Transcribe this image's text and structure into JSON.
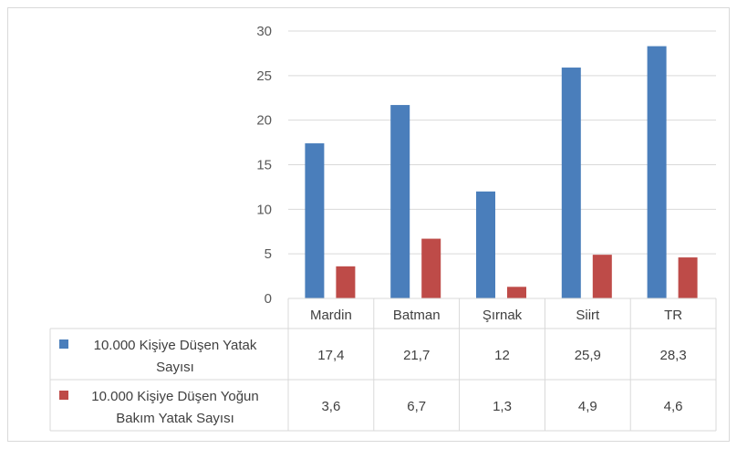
{
  "chart_data": {
    "type": "bar",
    "title": "",
    "xlabel": "",
    "ylabel": "",
    "ylim": [
      0,
      30
    ],
    "yticks": [
      0,
      5,
      10,
      15,
      20,
      25,
      30
    ],
    "grid": true,
    "legend": "data-table",
    "categories": [
      "Mardin",
      "Batman",
      "Şırnak",
      "Siirt",
      "TR"
    ],
    "series": [
      {
        "name": "10.000 Kişiye Düşen Yatak Sayısı",
        "name_lines": [
          "10.000 Kişiye Düşen Yatak",
          "Sayısı"
        ],
        "color": "#4a7ebb",
        "values": [
          17.4,
          21.7,
          12,
          25.9,
          28.3
        ],
        "value_labels": [
          "17,4",
          "21,7",
          "12",
          "25,9",
          "28,3"
        ]
      },
      {
        "name": "10.000 Kişiye Düşen Yoğun Bakım Yatak Sayısı",
        "name_lines": [
          "10.000 Kişiye Düşen Yoğun",
          "Bakım Yatak Sayısı"
        ],
        "color": "#be4b48",
        "values": [
          3.6,
          6.7,
          1.3,
          4.9,
          4.6
        ],
        "value_labels": [
          "3,6",
          "6,7",
          "1,3",
          "4,9",
          "4,6"
        ]
      }
    ]
  }
}
